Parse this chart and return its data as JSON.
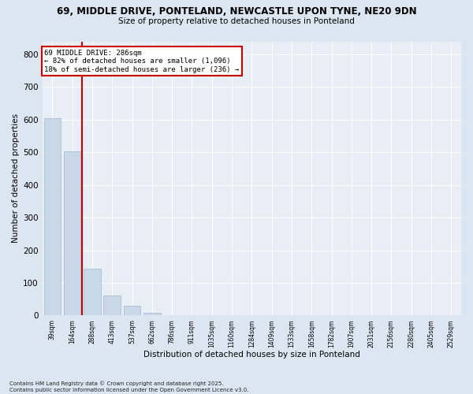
{
  "title_line1": "69, MIDDLE DRIVE, PONTELAND, NEWCASTLE UPON TYNE, NE20 9DN",
  "title_line2": "Size of property relative to detached houses in Ponteland",
  "xlabel": "Distribution of detached houses by size in Ponteland",
  "ylabel": "Number of detached properties",
  "bar_color": "#c8d8e8",
  "bar_edgecolor": "#a0b8cc",
  "vline_color": "#cc0000",
  "annotation_text": "69 MIDDLE DRIVE: 286sqm\n← 82% of detached houses are smaller (1,096)\n18% of semi-detached houses are larger (236) →",
  "annotation_box_color": "#ffffff",
  "annotation_box_edgecolor": "#cc0000",
  "categories": [
    "39sqm",
    "164sqm",
    "288sqm",
    "413sqm",
    "537sqm",
    "662sqm",
    "786sqm",
    "911sqm",
    "1035sqm",
    "1160sqm",
    "1284sqm",
    "1409sqm",
    "1533sqm",
    "1658sqm",
    "1782sqm",
    "1907sqm",
    "2031sqm",
    "2156sqm",
    "2280sqm",
    "2405sqm",
    "2529sqm"
  ],
  "values": [
    605,
    503,
    143,
    62,
    29,
    8,
    0,
    0,
    0,
    0,
    0,
    0,
    0,
    0,
    0,
    0,
    0,
    0,
    0,
    0,
    0
  ],
  "ylim": [
    0,
    840
  ],
  "yticks": [
    0,
    100,
    200,
    300,
    400,
    500,
    600,
    700,
    800
  ],
  "footnote": "Contains HM Land Registry data © Crown copyright and database right 2025.\nContains public sector information licensed under the Open Government Licence v3.0.",
  "bg_color": "#dce6f0",
  "plot_bg_color": "#e8eef5",
  "grid_color": "#ffffff",
  "vline_index": 1.5
}
